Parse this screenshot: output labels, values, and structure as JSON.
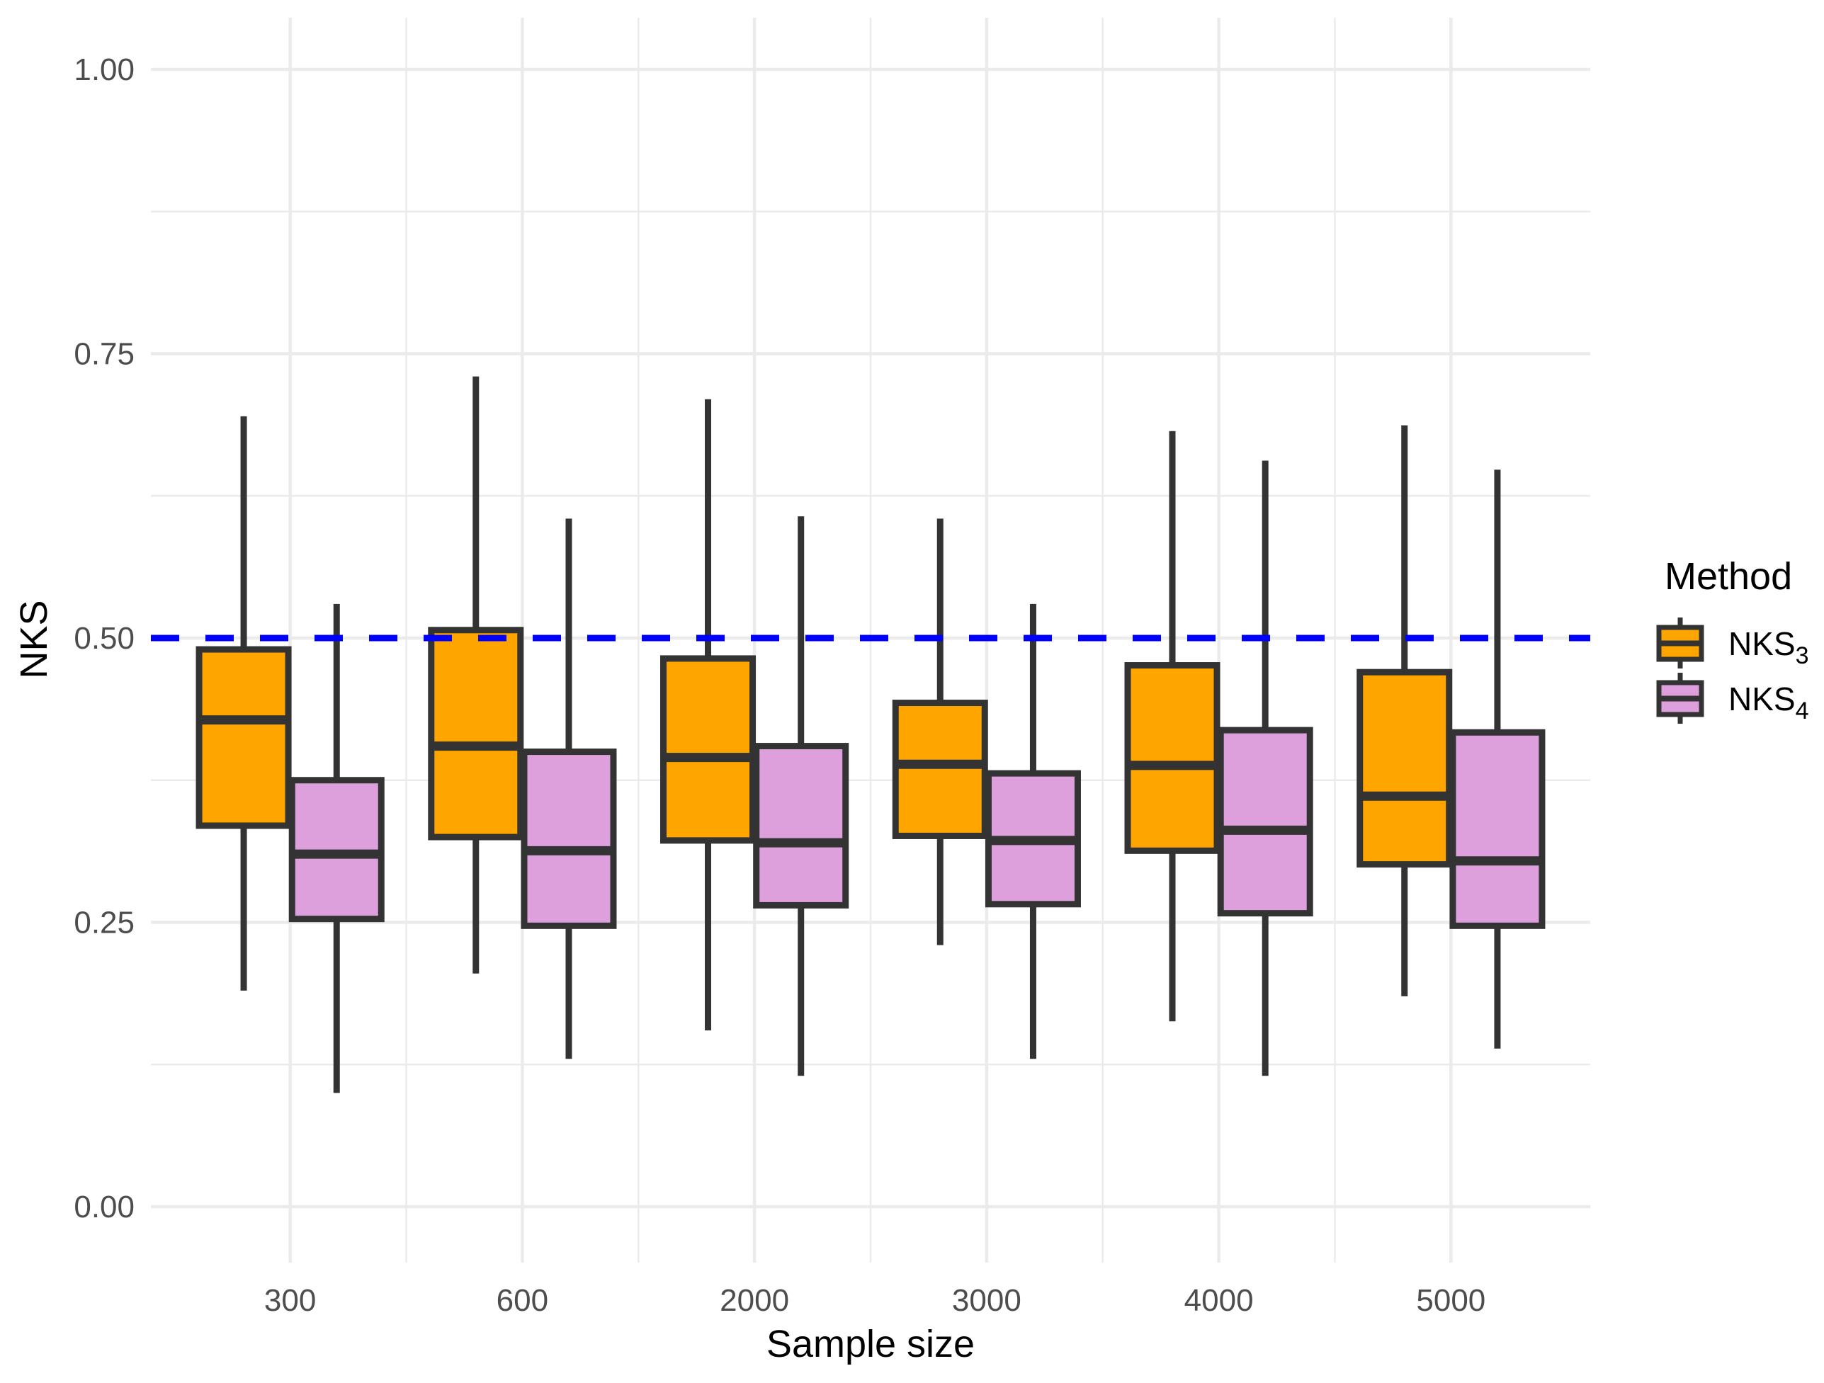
{
  "chart_data": {
    "type": "boxplot",
    "title": "",
    "xlabel": "Sample size",
    "ylabel": "NKS",
    "categories": [
      "300",
      "600",
      "2000",
      "3000",
      "4000",
      "5000"
    ],
    "ylim": [
      0,
      1
    ],
    "y_ticks": [
      {
        "label": "0.00",
        "value": 0.0
      },
      {
        "label": "0.25",
        "value": 0.25
      },
      {
        "label": "0.50",
        "value": 0.5
      },
      {
        "label": "0.75",
        "value": 0.75
      },
      {
        "label": "1.00",
        "value": 1.0
      }
    ],
    "y_minor_gridlines": [
      0.125,
      0.375,
      0.625,
      0.875
    ],
    "grid": "major_and_minor_light_gray",
    "legend": {
      "title": "Method",
      "position": "right",
      "entries": [
        {
          "label": "NKS",
          "subscript": "3"
        },
        {
          "label": "NKS",
          "subscript": "4"
        }
      ]
    },
    "reference_line": {
      "value": 0.5,
      "color": "#0000ff",
      "style": "dashed"
    },
    "series": [
      {
        "name": "NKS3",
        "color": "#FFA500",
        "boxes": [
          {
            "category": "300",
            "whisker_low": 0.19,
            "q1": 0.335,
            "median": 0.428,
            "q3": 0.49,
            "whisker_high": 0.695
          },
          {
            "category": "600",
            "whisker_low": 0.205,
            "q1": 0.325,
            "median": 0.405,
            "q3": 0.507,
            "whisker_high": 0.73
          },
          {
            "category": "2000",
            "whisker_low": 0.155,
            "q1": 0.322,
            "median": 0.395,
            "q3": 0.482,
            "whisker_high": 0.71
          },
          {
            "category": "3000",
            "whisker_low": 0.23,
            "q1": 0.326,
            "median": 0.389,
            "q3": 0.443,
            "whisker_high": 0.605
          },
          {
            "category": "4000",
            "whisker_low": 0.163,
            "q1": 0.313,
            "median": 0.388,
            "q3": 0.476,
            "whisker_high": 0.682
          },
          {
            "category": "5000",
            "whisker_low": 0.185,
            "q1": 0.301,
            "median": 0.361,
            "q3": 0.47,
            "whisker_high": 0.687
          }
        ]
      },
      {
        "name": "NKS4",
        "color": "#DDA0DD",
        "boxes": [
          {
            "category": "300",
            "whisker_low": 0.1,
            "q1": 0.253,
            "median": 0.31,
            "q3": 0.375,
            "whisker_high": 0.53
          },
          {
            "category": "600",
            "whisker_low": 0.13,
            "q1": 0.247,
            "median": 0.313,
            "q3": 0.4,
            "whisker_high": 0.605
          },
          {
            "category": "2000",
            "whisker_low": 0.115,
            "q1": 0.265,
            "median": 0.32,
            "q3": 0.405,
            "whisker_high": 0.607
          },
          {
            "category": "3000",
            "whisker_low": 0.13,
            "q1": 0.266,
            "median": 0.322,
            "q3": 0.381,
            "whisker_high": 0.53
          },
          {
            "category": "4000",
            "whisker_low": 0.115,
            "q1": 0.258,
            "median": 0.331,
            "q3": 0.419,
            "whisker_high": 0.656
          },
          {
            "category": "5000",
            "whisker_low": 0.139,
            "q1": 0.247,
            "median": 0.304,
            "q3": 0.417,
            "whisker_high": 0.648
          }
        ]
      }
    ],
    "style": {
      "box_border": "#333333",
      "median_color": "#333333",
      "whisker_color": "#333333",
      "major_gridline": "#ebebeb",
      "minor_gridline": "#ebebeb",
      "axis_text": "#4d4d4d",
      "title_text": "#000000",
      "background": "#ffffff"
    }
  }
}
